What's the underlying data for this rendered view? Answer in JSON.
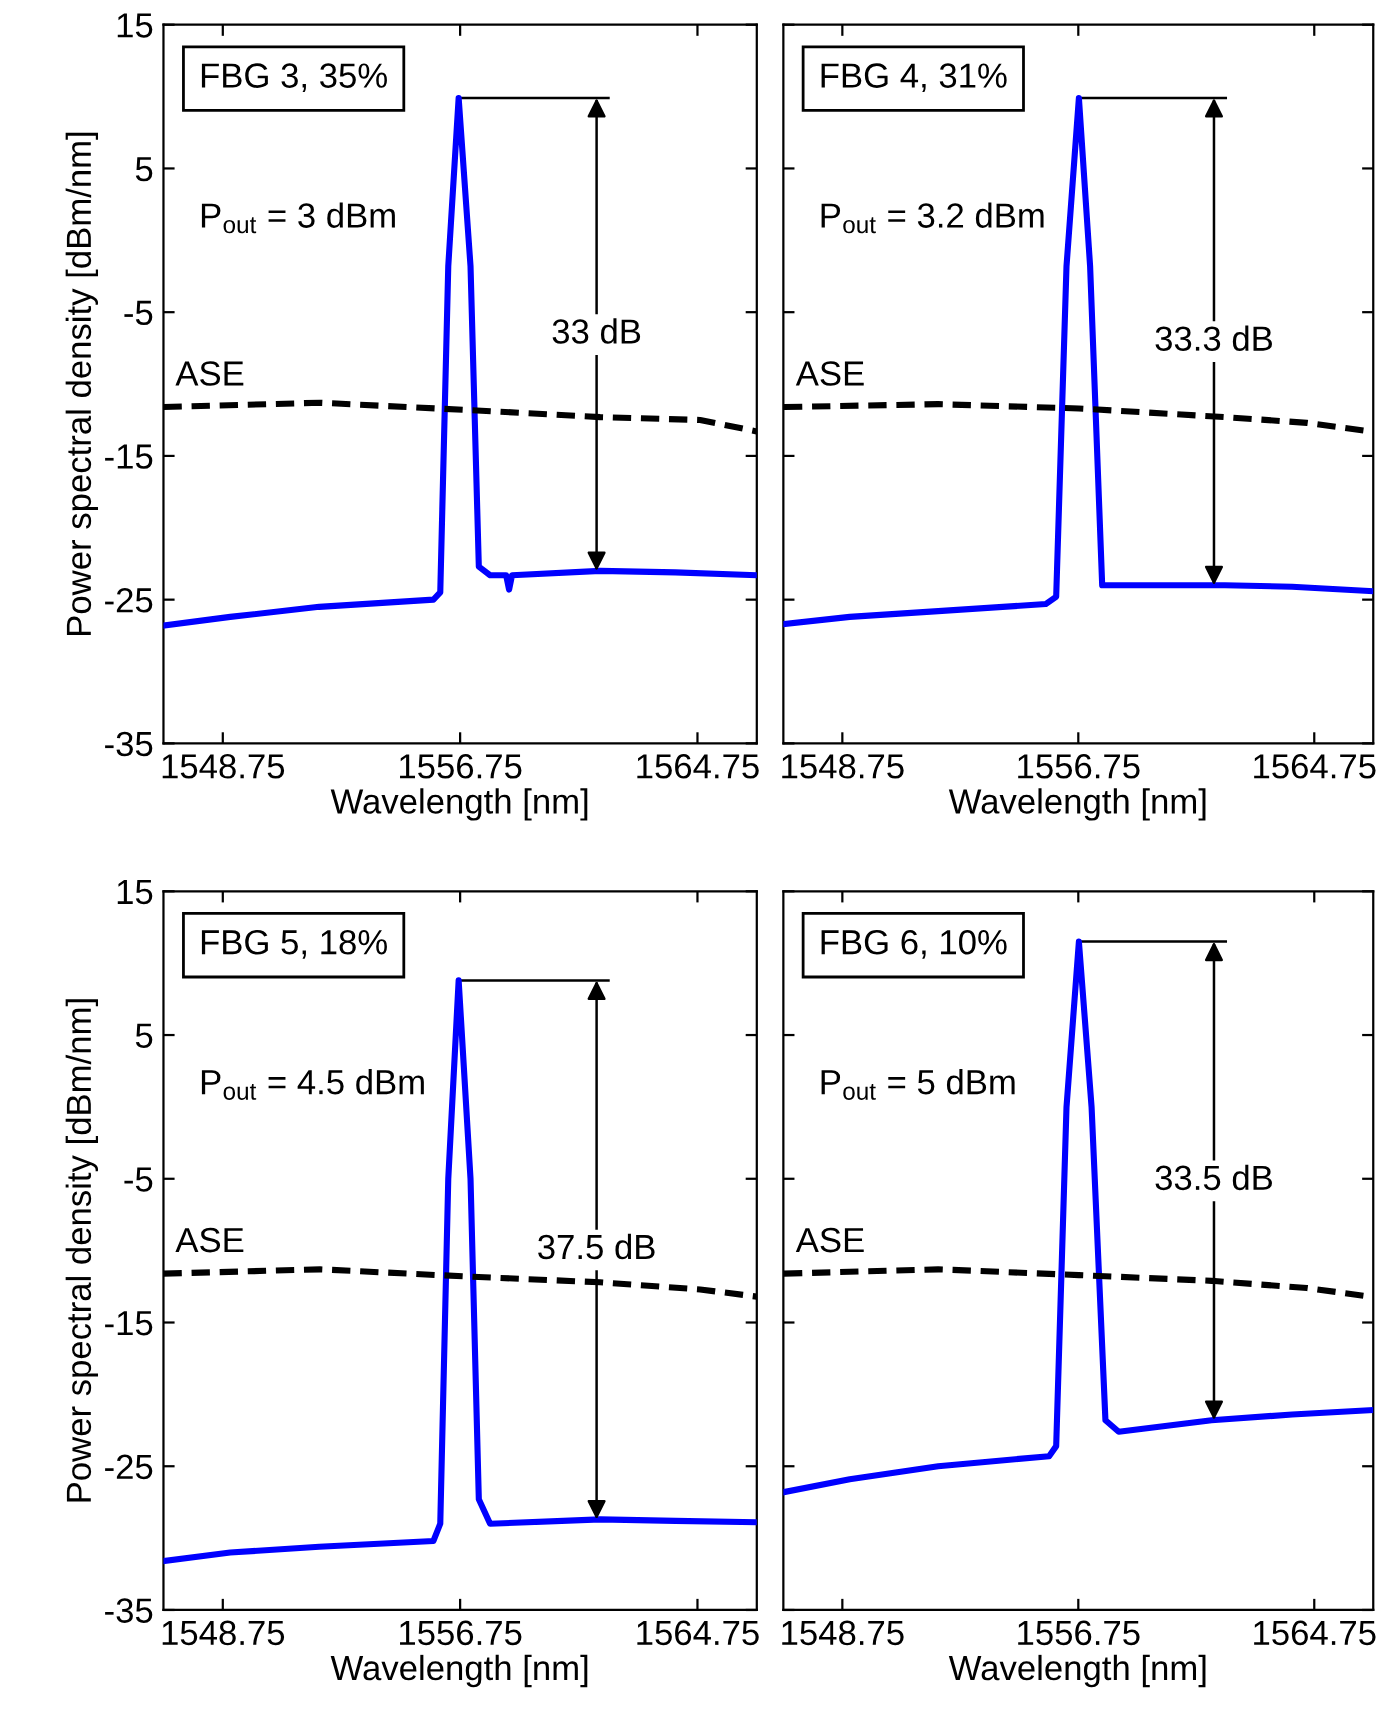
{
  "chart_data": [
    {
      "type": "line",
      "xlabel": "Wavelength [nm]",
      "ylabel": "Power spectral density [dBm/nm]",
      "xlim": [
        1546.75,
        1566.75
      ],
      "ylim": [
        -35,
        15
      ],
      "xticks": [
        1548.75,
        1556.75,
        1564.75
      ],
      "yticks": [
        -35,
        -25,
        -15,
        -5,
        5,
        15
      ],
      "tick_labels": true,
      "grid": false,
      "legend": false,
      "annotations": [
        "FBG 3, 35%",
        "P$_{out}$ = 3 dBm",
        "33 dB"
      ],
      "series": [
        {
          "color": "#0000ff",
          "line_style": "solid",
          "x": [
            1546.75,
            1549,
            1552,
            1555.85,
            1556.08,
            1556.35,
            1556.7,
            1557.1,
            1557.38,
            1557.76,
            1558.3,
            1558.4,
            1558.5,
            1561.47,
            1564,
            1566.75
          ],
          "values": [
            -26.8,
            -26.2,
            -25.5,
            -25.0,
            -24.5,
            -1.8,
            9.9,
            -1.8,
            -22.7,
            -23.3,
            -23.3,
            -24.3,
            -23.3,
            -23.0,
            -23.1,
            -23.3
          ]
        },
        {
          "name": "ASE",
          "color": "#000000",
          "line_style": "dashed",
          "x": [
            1546.75,
            1552.03,
            1556.97,
            1561.47,
            1564.84,
            1566.75
          ],
          "values": [
            -11.6,
            -11.3,
            -11.8,
            -12.3,
            -12.5,
            -13.3
          ]
        }
      ]
    },
    {
      "type": "line",
      "xlabel": "Wavelength [nm]",
      "xlim": [
        1546.75,
        1566.75
      ],
      "ylim": [
        -35,
        15
      ],
      "xticks": [
        1548.75,
        1556.75,
        1564.75
      ],
      "yticks": [
        -35,
        -25,
        -15,
        -5,
        5,
        15
      ],
      "tick_labels": "x",
      "grid": false,
      "legend": false,
      "annotations": [
        "FBG 4, 31%",
        "P$_{out}$ = 3.2 dBm",
        "33.3 dB"
      ],
      "series": [
        {
          "color": "#0000ff",
          "line_style": "solid",
          "x": [
            1546.77,
            1549,
            1552,
            1555.65,
            1556.0,
            1556.35,
            1556.77,
            1557.15,
            1557.56,
            1561.72,
            1564,
            1566.66
          ],
          "values": [
            -26.7,
            -26.2,
            -25.8,
            -25.3,
            -24.8,
            -1.8,
            9.9,
            -1.8,
            -24.0,
            -24.0,
            -24.1,
            -24.4
          ]
        },
        {
          "name": "ASE",
          "color": "#000000",
          "line_style": "dashed",
          "x": [
            1546.77,
            1552.0,
            1556.77,
            1561.72,
            1564.5,
            1566.66
          ],
          "values": [
            -11.6,
            -11.4,
            -11.7,
            -12.3,
            -12.7,
            -13.3
          ]
        }
      ]
    },
    {
      "type": "line",
      "xlabel": "Wavelength [nm]",
      "ylabel": "Power spectral density [dBm/nm]",
      "xlim": [
        1546.75,
        1566.75
      ],
      "ylim": [
        -35,
        15
      ],
      "xticks": [
        1548.75,
        1556.75,
        1564.75
      ],
      "yticks": [
        -35,
        -25,
        -15,
        -5,
        5,
        15
      ],
      "tick_labels": true,
      "grid": false,
      "legend": false,
      "annotations": [
        "FBG 5, 18%",
        "P$_{out}$ = 4.5 dBm",
        "37.5 dB"
      ],
      "series": [
        {
          "color": "#0000ff",
          "line_style": "solid",
          "x": [
            1546.75,
            1549,
            1552,
            1555.85,
            1556.08,
            1556.35,
            1556.7,
            1557.1,
            1557.38,
            1557.76,
            1561.47,
            1564,
            1566.75
          ],
          "values": [
            -31.6,
            -31.0,
            -30.6,
            -30.2,
            -29.0,
            -5.0,
            8.8,
            -5.0,
            -27.3,
            -29.0,
            -28.7,
            -28.8,
            -28.9
          ]
        },
        {
          "name": "ASE",
          "color": "#000000",
          "line_style": "dashed",
          "x": [
            1546.75,
            1552.03,
            1556.97,
            1561.47,
            1564.84,
            1566.75
          ],
          "values": [
            -11.6,
            -11.3,
            -11.8,
            -12.2,
            -12.7,
            -13.2
          ]
        }
      ]
    },
    {
      "type": "line",
      "xlabel": "Wavelength [nm]",
      "xlim": [
        1546.75,
        1566.75
      ],
      "ylim": [
        -35,
        15
      ],
      "xticks": [
        1548.75,
        1556.75,
        1564.75
      ],
      "yticks": [
        -35,
        -25,
        -15,
        -5,
        5,
        15
      ],
      "tick_labels": "x",
      "grid": false,
      "legend": false,
      "annotations": [
        "FBG 6, 10%",
        "P$_{out}$ = 5 dBm",
        "33.5 dB"
      ],
      "series": [
        {
          "color": "#0000ff",
          "line_style": "solid",
          "x": [
            1546.77,
            1549,
            1552,
            1555.76,
            1556.0,
            1556.35,
            1556.77,
            1557.2,
            1557.67,
            1558.12,
            1561.27,
            1564,
            1566.66
          ],
          "values": [
            -26.8,
            -25.9,
            -25.0,
            -24.3,
            -23.6,
            0.0,
            11.5,
            0.0,
            -21.8,
            -22.6,
            -21.8,
            -21.4,
            -21.1
          ]
        },
        {
          "name": "ASE",
          "color": "#000000",
          "line_style": "dashed",
          "x": [
            1546.77,
            1552.0,
            1556.77,
            1561.27,
            1564.5,
            1566.66
          ],
          "values": [
            -11.6,
            -11.3,
            -11.7,
            -12.1,
            -12.6,
            -13.2
          ]
        }
      ]
    }
  ]
}
